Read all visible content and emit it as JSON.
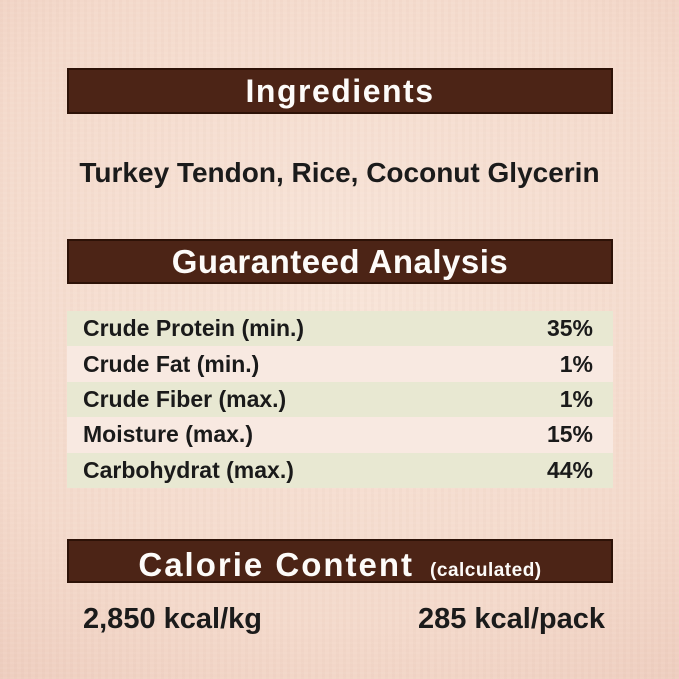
{
  "colors": {
    "background_center": "#f8e5d9",
    "background_edge": "#e5bfac",
    "bar_brown": "#4c2416",
    "bar_border": "#2d1207",
    "bar_text": "#fdfbf9",
    "row_green": "#e8e8d2",
    "row_pink": "#f8e9e1",
    "body_text": "#1b1b1b"
  },
  "ingredients": {
    "header": "Ingredients",
    "list": "Turkey Tendon, Rice, Coconut Glycerin"
  },
  "guaranteed_analysis": {
    "header": "Guaranteed Analysis",
    "rows": [
      {
        "label": "Crude Protein (min.)",
        "value": "35%"
      },
      {
        "label": "Crude Fat (min.)",
        "value": "1%"
      },
      {
        "label": "Crude Fiber (max.)",
        "value": "1%"
      },
      {
        "label": "Moisture (max.)",
        "value": "15%"
      },
      {
        "label": "Carbohydrat (max.)",
        "value": "44%"
      }
    ]
  },
  "calorie_content": {
    "header": "Calorie Content",
    "header_note": "(calculated)",
    "per_kg": "2,850 kcal/kg",
    "per_pack": "285 kcal/pack"
  }
}
